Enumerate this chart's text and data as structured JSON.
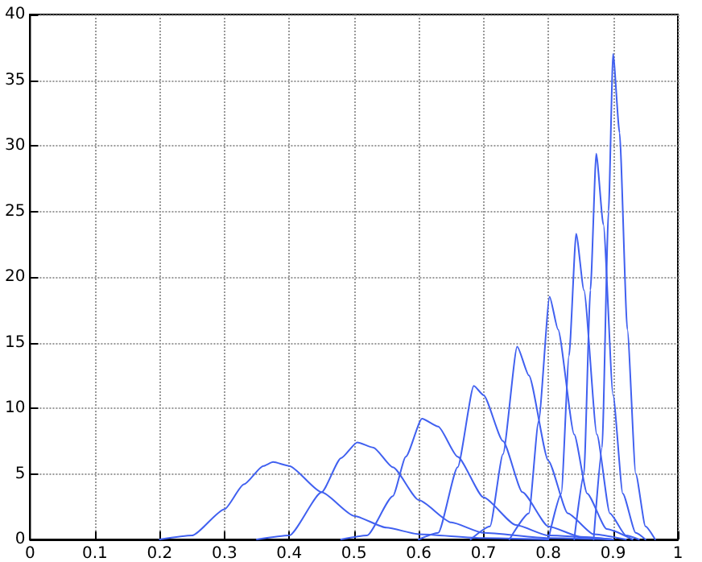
{
  "chart_data": {
    "type": "line",
    "xlim": [
      0,
      1
    ],
    "ylim": [
      0,
      40
    ],
    "xticks": [
      0,
      0.1,
      0.2,
      0.3,
      0.4,
      0.5,
      0.6,
      0.7,
      0.8,
      0.9,
      1
    ],
    "yticks": [
      0,
      5,
      10,
      15,
      20,
      25,
      30,
      35,
      40
    ],
    "grid": true,
    "marker": "none",
    "line_style": "solid",
    "series": [
      {
        "color": "#4060f0",
        "x": [
          0.2,
          0.25,
          0.3,
          0.33,
          0.36,
          0.375,
          0.4,
          0.45,
          0.5,
          0.55,
          0.6,
          0.7,
          0.8
        ],
        "values": [
          0,
          0.3,
          2.3,
          4.2,
          5.6,
          5.9,
          5.6,
          3.6,
          1.8,
          0.9,
          0.4,
          0.1,
          0
        ]
      },
      {
        "color": "#4060f0",
        "x": [
          0.35,
          0.4,
          0.45,
          0.48,
          0.505,
          0.53,
          0.56,
          0.6,
          0.65,
          0.7,
          0.8,
          0.9
        ],
        "values": [
          0,
          0.3,
          3.6,
          6.2,
          7.4,
          7.0,
          5.5,
          3.0,
          1.3,
          0.5,
          0.1,
          0
        ]
      },
      {
        "color": "#4060f0",
        "x": [
          0.48,
          0.52,
          0.56,
          0.58,
          0.605,
          0.63,
          0.66,
          0.7,
          0.75,
          0.8,
          0.9
        ],
        "values": [
          0,
          0.3,
          3.3,
          6.3,
          9.2,
          8.6,
          6.3,
          3.2,
          1.1,
          0.3,
          0
        ]
      },
      {
        "color": "#4060f0",
        "x": [
          0.6,
          0.63,
          0.66,
          0.685,
          0.7,
          0.73,
          0.76,
          0.8,
          0.85,
          0.9
        ],
        "values": [
          0,
          0.5,
          5.5,
          11.7,
          11.0,
          7.5,
          3.6,
          1.0,
          0.2,
          0
        ]
      },
      {
        "color": "#4060f0",
        "x": [
          0.68,
          0.71,
          0.73,
          0.752,
          0.77,
          0.8,
          0.83,
          0.87,
          0.92
        ],
        "values": [
          0,
          1.0,
          6.5,
          14.7,
          12.5,
          6.0,
          2.0,
          0.4,
          0
        ]
      },
      {
        "color": "#4060f0",
        "x": [
          0.74,
          0.77,
          0.785,
          0.802,
          0.815,
          0.84,
          0.86,
          0.89,
          0.93
        ],
        "values": [
          0,
          2.0,
          9.0,
          18.5,
          16.0,
          8.0,
          3.5,
          0.8,
          0
        ]
      },
      {
        "color": "#4060f0",
        "x": [
          0.8,
          0.82,
          0.832,
          0.843,
          0.855,
          0.875,
          0.895,
          0.92,
          0.94
        ],
        "values": [
          0,
          3.5,
          14.0,
          23.3,
          19.0,
          8.0,
          2.0,
          0.3,
          0
        ]
      },
      {
        "color": "#4060f0",
        "x": [
          0.84,
          0.855,
          0.865,
          0.874,
          0.885,
          0.9,
          0.915,
          0.935,
          0.95
        ],
        "values": [
          0,
          5.0,
          19.0,
          29.4,
          24.0,
          11.0,
          3.5,
          0.5,
          0
        ]
      },
      {
        "color": "#4060f0",
        "x": [
          0.87,
          0.883,
          0.893,
          0.9,
          0.91,
          0.922,
          0.935,
          0.95,
          0.965
        ],
        "values": [
          0,
          7.0,
          25.0,
          37,
          31.0,
          16.0,
          5.0,
          1.0,
          0
        ]
      }
    ]
  }
}
